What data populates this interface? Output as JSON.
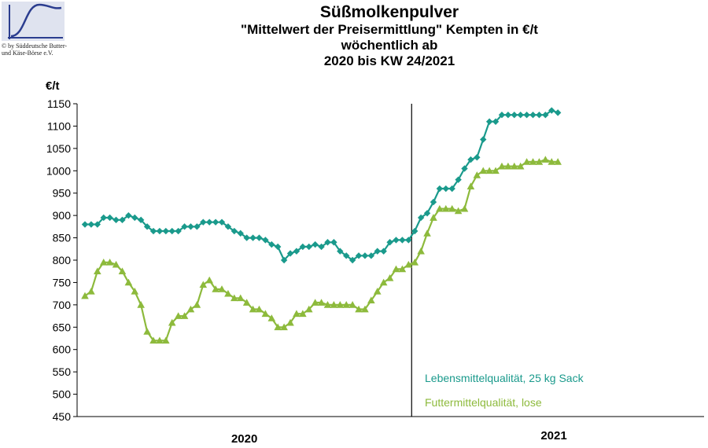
{
  "logo": {
    "icon": "sine-curve-logo",
    "line1": "© by Süddeutsche Butter-",
    "line2": "und Käse-Börse e.V."
  },
  "header": {
    "title": "Süßmolkenpulver",
    "subtitle1": "\"Mittelwert der Preisermittlung\" Kempten in €/t",
    "subtitle2": "wöchentlich ab",
    "subtitle3": "2020 bis KW 24/2021"
  },
  "chart_data": {
    "type": "line",
    "title": "Süßmolkenpulver",
    "ylabel": "€/t",
    "ylim": [
      450,
      1150
    ],
    "yticks": [
      450,
      500,
      550,
      600,
      650,
      700,
      750,
      800,
      850,
      900,
      950,
      1000,
      1050,
      1100,
      1150
    ],
    "x_labels": [
      "2020",
      "2021"
    ],
    "year_divider_after_week": 53,
    "grid": false,
    "legend_position": "bottom-right",
    "series": [
      {
        "name": "Lebensmittelqualität, 25 kg Sack",
        "color": "#1a9a8c",
        "marker": "diamond",
        "values": [
          880,
          880,
          880,
          895,
          895,
          890,
          890,
          900,
          895,
          890,
          875,
          865,
          865,
          865,
          865,
          865,
          875,
          875,
          875,
          885,
          885,
          885,
          885,
          875,
          865,
          860,
          850,
          850,
          850,
          845,
          835,
          830,
          800,
          815,
          820,
          830,
          830,
          835,
          830,
          840,
          840,
          820,
          810,
          800,
          810,
          810,
          810,
          820,
          820,
          840,
          845,
          845,
          845,
          865,
          895,
          905,
          930,
          960,
          960,
          960,
          980,
          1005,
          1025,
          1030,
          1070,
          1110,
          1110,
          1125,
          1125,
          1125,
          1125,
          1125,
          1125,
          1125,
          1125,
          1135,
          1130
        ]
      },
      {
        "name": "Futtermittelqualität, lose",
        "color": "#8dba3c",
        "marker": "triangle",
        "values": [
          720,
          730,
          775,
          795,
          795,
          790,
          775,
          750,
          730,
          700,
          640,
          620,
          620,
          620,
          660,
          675,
          675,
          690,
          700,
          745,
          755,
          735,
          735,
          725,
          715,
          715,
          705,
          690,
          690,
          680,
          670,
          650,
          650,
          660,
          680,
          680,
          690,
          705,
          705,
          700,
          700,
          700,
          700,
          700,
          690,
          690,
          710,
          730,
          750,
          760,
          780,
          780,
          790,
          795,
          820,
          860,
          895,
          915,
          915,
          915,
          910,
          915,
          965,
          990,
          1000,
          1000,
          1000,
          1010,
          1010,
          1010,
          1010,
          1020,
          1020,
          1020,
          1025,
          1020,
          1020
        ]
      }
    ]
  }
}
